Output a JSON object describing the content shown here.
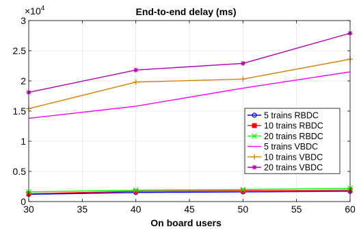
{
  "chart_data": {
    "type": "line",
    "title": "End-to-end delay (ms)",
    "xlabel": "On board users",
    "ylabel": "",
    "xlim": [
      30,
      60
    ],
    "ylim": [
      0,
      30000
    ],
    "x_ticks": [
      30,
      35,
      40,
      45,
      50,
      55,
      60
    ],
    "y_ticks": [
      0,
      5000,
      10000,
      15000,
      20000,
      25000,
      30000
    ],
    "y_tick_labels": [
      "0",
      "0.5",
      "1",
      "1.5",
      "2",
      "2.5",
      "3"
    ],
    "y_multiplier_base": "×10",
    "y_multiplier_exp": "4",
    "grid": true,
    "legend_position": "right",
    "x": [
      30,
      40,
      50,
      60
    ],
    "series": [
      {
        "name": "5 trains RBDC",
        "color": "#0000ff",
        "marker": "circle",
        "values": [
          1200,
          1500,
          1600,
          1700
        ]
      },
      {
        "name": "10 trains RBDC",
        "color": "#ff0000",
        "marker": "square",
        "values": [
          1300,
          1700,
          1800,
          1900
        ]
      },
      {
        "name": "20 trains RBDC",
        "color": "#00ff00",
        "marker": "x",
        "values": [
          1600,
          1900,
          2000,
          2200
        ]
      },
      {
        "name": "5 trains VBDC",
        "color": "#ff00ff",
        "marker": "none",
        "values": [
          13800,
          15800,
          18800,
          21500
        ]
      },
      {
        "name": "10 trains VBDC",
        "color": "#d98000",
        "marker": "plus",
        "values": [
          15400,
          19800,
          20300,
          23600
        ]
      },
      {
        "name": "20 trains VBDC",
        "color": "#b000b0",
        "marker": "star",
        "values": [
          18100,
          21800,
          22900,
          27900
        ]
      }
    ]
  }
}
